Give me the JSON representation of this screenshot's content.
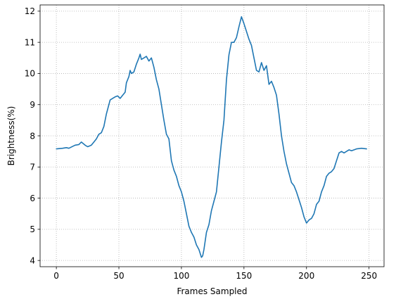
{
  "chart_data": {
    "type": "line",
    "title": "",
    "xlabel": "Frames Sampled",
    "ylabel": "Brightness(%)",
    "xlim": [
      -13,
      262
    ],
    "ylim": [
      3.8,
      12.2
    ],
    "xticks": [
      0,
      50,
      100,
      150,
      200,
      250
    ],
    "yticks": [
      4,
      5,
      6,
      7,
      8,
      9,
      10,
      11,
      12
    ],
    "grid": true,
    "legend": "none",
    "colors": {
      "line": "#1f77b4",
      "grid": "#b0b0b0",
      "axes": "#000000"
    },
    "series": [
      {
        "x": [
          0,
          5,
          8,
          10,
          15,
          18,
          20,
          23,
          25,
          28,
          30,
          32,
          34,
          36,
          38,
          40,
          42,
          43,
          45,
          47,
          49,
          51,
          53,
          55,
          56,
          58,
          59,
          60,
          62,
          64,
          66,
          67,
          68,
          70,
          72,
          74,
          76,
          78,
          80,
          82,
          84,
          86,
          88,
          90,
          92,
          94,
          96,
          98,
          100,
          102,
          104,
          106,
          108,
          110,
          112,
          114,
          116,
          117,
          118,
          120,
          122,
          124,
          126,
          128,
          130,
          132,
          134,
          136,
          138,
          140,
          142,
          144,
          146,
          148,
          150,
          152,
          154,
          156,
          158,
          160,
          162,
          164,
          166,
          168,
          170,
          172,
          174,
          176,
          178,
          180,
          182,
          184,
          186,
          188,
          190,
          192,
          194,
          196,
          198,
          200,
          202,
          204,
          206,
          208,
          210,
          212,
          214,
          216,
          218,
          220,
          222,
          224,
          226,
          228,
          230,
          234,
          236,
          240,
          244,
          248
        ],
        "y": [
          7.58,
          7.6,
          7.62,
          7.6,
          7.7,
          7.72,
          7.8,
          7.7,
          7.65,
          7.7,
          7.8,
          7.9,
          8.05,
          8.1,
          8.3,
          8.7,
          9.0,
          9.15,
          9.2,
          9.25,
          9.28,
          9.2,
          9.3,
          9.4,
          9.7,
          9.9,
          10.1,
          10.0,
          10.05,
          10.3,
          10.5,
          10.62,
          10.45,
          10.5,
          10.55,
          10.4,
          10.5,
          10.2,
          9.8,
          9.5,
          9.0,
          8.5,
          8.05,
          7.9,
          7.2,
          6.9,
          6.7,
          6.4,
          6.2,
          5.9,
          5.5,
          5.1,
          4.9,
          4.75,
          4.5,
          4.35,
          4.1,
          4.15,
          4.35,
          4.9,
          5.15,
          5.6,
          5.9,
          6.2,
          7.0,
          7.8,
          8.5,
          9.8,
          10.6,
          11.0,
          11.0,
          11.15,
          11.5,
          11.82,
          11.6,
          11.35,
          11.1,
          10.9,
          10.5,
          10.1,
          10.05,
          10.35,
          10.1,
          10.25,
          9.65,
          9.75,
          9.55,
          9.3,
          8.7,
          8.0,
          7.5,
          7.1,
          6.8,
          6.5,
          6.4,
          6.2,
          5.95,
          5.7,
          5.4,
          5.2,
          5.3,
          5.35,
          5.5,
          5.8,
          5.9,
          6.2,
          6.4,
          6.7,
          6.8,
          6.85,
          6.95,
          7.2,
          7.45,
          7.5,
          7.45,
          7.55,
          7.52,
          7.58,
          7.6,
          7.58
        ]
      }
    ]
  }
}
